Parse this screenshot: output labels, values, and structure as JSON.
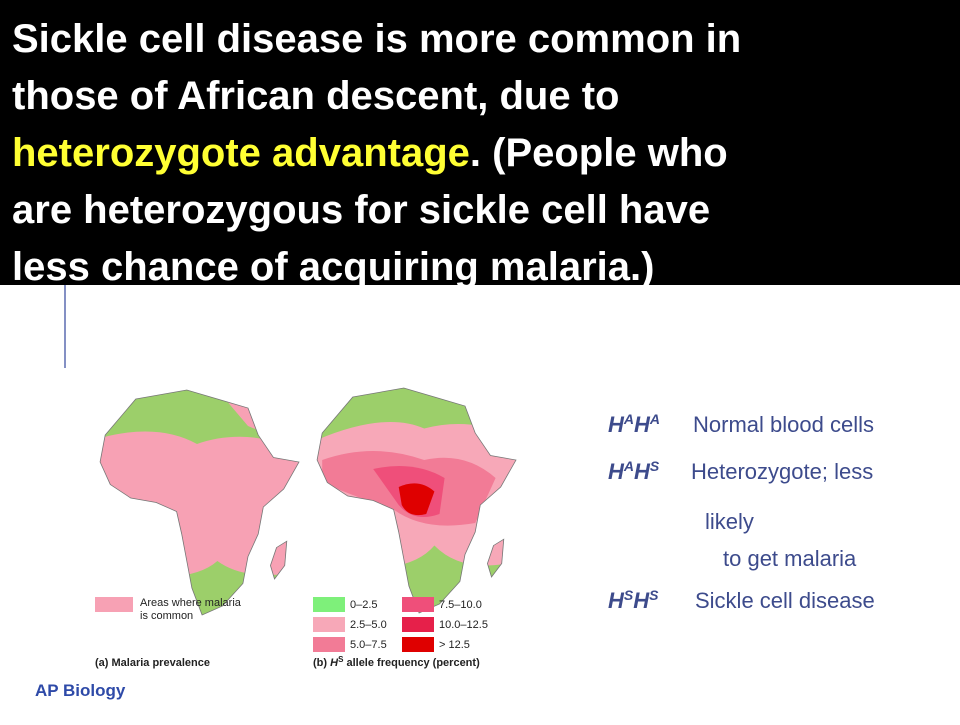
{
  "title": {
    "line1": "Sickle cell disease is more common in",
    "line2": "those of African descent, due to",
    "highlight": "heterozygote advantage",
    "line3": ".  (People who",
    "line4": "are heterozygous for sickle cell have",
    "line5": "less chance of acquiring malaria.)"
  },
  "figure": {
    "malaria_legend": {
      "line1": "Areas where malaria",
      "line2": "is common",
      "color": "#f7a1b4"
    },
    "frequency_legend": [
      {
        "label": "0–2.5",
        "color": "#7ef07a"
      },
      {
        "label": "2.5–5.0",
        "color": "#f7a8b8"
      },
      {
        "label": "5.0–7.5",
        "color": "#f27b96"
      },
      {
        "label": "7.5–10.0",
        "color": "#ef4f7a"
      },
      {
        "label": "10.0–12.5",
        "color": "#e6204a"
      },
      {
        "label": "> 12.5",
        "color": "#df0000"
      }
    ],
    "caption_a": "(a) Malaria prevalence",
    "caption_b": {
      "prefix": "(b) ",
      "h": "H",
      "sup": "S",
      "rest": " allele frequency (percent)"
    }
  },
  "genotypes": [
    {
      "h1": "H",
      "s1": "A",
      "h2": "H",
      "s2": "A",
      "lines": [
        "Normal blood cells"
      ]
    },
    {
      "h1": "H",
      "s1": "A",
      "h2": "H",
      "s2": "S",
      "lines": [
        "Heterozygote; less",
        "likely",
        "to get malaria"
      ]
    },
    {
      "h1": "H",
      "s1": "S",
      "h2": "H",
      "s2": "S",
      "lines": [
        "Sickle cell disease"
      ]
    }
  ],
  "footer": "AP Biology"
}
